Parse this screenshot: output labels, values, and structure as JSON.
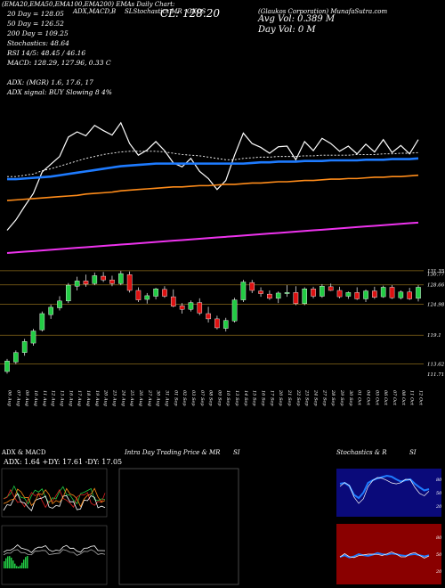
{
  "header": {
    "top_line": {
      "left": "(EMA20,EMA50,EMA100,EMA200) EMAs Daily Chart:",
      "mid": "SLStochastics MR",
      "indicators": "ADX,MACD,B",
      "symbol_label": "Daily Charts",
      "ticker": "GKOS",
      "company": "(Glaukos Corporation) MunafaSutra.com"
    },
    "lines": [
      "20  Day = 128.05",
      "50  Day = 126.52",
      "200  Day = 109.25",
      "Stochastics: 48.64",
      "RSI 14/5: 48.45 / 46.16",
      "MACD: 128.29,  127.96,  0.33 C",
      "",
      "ADX:                     (MGR) 1.6,  17.6,  17",
      "ADX  signal:                     BUY Slowing 8 4%"
    ],
    "cl_label": "CL: 128.20",
    "avg_vol": "Avg Vol: 0.389 M",
    "day_vol": "Day Vol: 0   M"
  },
  "price_axis": [
    "131.35",
    "130.77",
    "128.66",
    "124.98",
    "119.1",
    "113.62",
    "111.71"
  ],
  "date_labels": [
    "06 Aug",
    "07 Aug",
    "09 Aug",
    "10 Aug",
    "11 Aug",
    "12 Aug",
    "13 Aug",
    "16 Aug",
    "17 Aug",
    "18 Aug",
    "19 Aug",
    "20 Aug",
    "23 Aug",
    "24 Aug",
    "25 Aug",
    "26 Aug",
    "27 Aug",
    "30 Aug",
    "31 Aug",
    "01 Sep",
    "02 Sep",
    "03 Sep",
    "07 Sep",
    "08 Sep",
    "09 Sep",
    "10 Sep",
    "13 Sep",
    "14 Sep",
    "15 Sep",
    "16 Sep",
    "17 Sep",
    "20 Sep",
    "21 Sep",
    "22 Sep",
    "23 Sep",
    "24 Sep",
    "27 Sep",
    "28 Sep",
    "29 Sep",
    "30 Sep",
    "01 Oct",
    "04 Oct",
    "05 Oct",
    "06 Oct",
    "07 Oct",
    "08 Oct",
    "11 Oct",
    "12 Oct"
  ],
  "panels": {
    "adx_title": "ADX  & MACD",
    "adx_values": "ADX: 1.64  +DY: 17.61  -DY: 17.05",
    "intra_title": "Intra  Day Trading Price  & MR",
    "si_label": "SI",
    "stoch_title": "Stochastics  & R",
    "stoch_si": "SI",
    "stoch_ticks": [
      "80",
      "50",
      "20"
    ],
    "rsi_ticks": [
      "80",
      "50",
      "20"
    ]
  },
  "colors": {
    "bull": "#22cc44",
    "bear": "#dd1111",
    "ema20": "#ffffff",
    "ema50": "#1e7bff",
    "ema100": "#ff8c1a",
    "ema200": "#ee33ee",
    "stoch_bg": "#0a0a7a",
    "rsi_bg": "#8a0000"
  },
  "chart_data": {
    "type": "candlestick",
    "ylim": [
      110,
      132
    ],
    "candles": [
      [
        112.2,
        114.6,
        111.8,
        114.2
      ],
      [
        114.0,
        116.2,
        113.6,
        115.8
      ],
      [
        115.8,
        118.4,
        115.2,
        117.9
      ],
      [
        117.6,
        120.3,
        117.1,
        119.9
      ],
      [
        120.1,
        123.6,
        119.8,
        123.2
      ],
      [
        123.0,
        124.9,
        122.2,
        124.4
      ],
      [
        124.3,
        126.5,
        123.8,
        125.6
      ],
      [
        125.6,
        129.0,
        125.2,
        128.6
      ],
      [
        128.4,
        130.2,
        127.6,
        129.4
      ],
      [
        129.4,
        130.6,
        128.3,
        128.8
      ],
      [
        128.9,
        131.0,
        128.6,
        130.4
      ],
      [
        130.3,
        131.1,
        129.2,
        129.6
      ],
      [
        129.6,
        130.4,
        128.4,
        128.9
      ],
      [
        128.9,
        131.3,
        128.6,
        130.8
      ],
      [
        130.6,
        131.2,
        127.2,
        127.6
      ],
      [
        127.6,
        128.2,
        125.4,
        125.8
      ],
      [
        125.9,
        127.1,
        125.1,
        126.6
      ],
      [
        126.5,
        128.1,
        125.9,
        127.9
      ],
      [
        127.8,
        128.4,
        126.2,
        126.5
      ],
      [
        126.4,
        127.8,
        124.4,
        124.6
      ],
      [
        124.7,
        125.2,
        123.2,
        124.0
      ],
      [
        124.0,
        125.7,
        123.6,
        125.3
      ],
      [
        125.3,
        126.1,
        122.9,
        123.3
      ],
      [
        123.2,
        124.5,
        121.5,
        122.2
      ],
      [
        122.2,
        122.8,
        120.2,
        120.5
      ],
      [
        120.4,
        122.4,
        119.8,
        121.9
      ],
      [
        121.8,
        126.2,
        121.5,
        125.8
      ],
      [
        125.8,
        129.6,
        125.4,
        129.2
      ],
      [
        129.1,
        129.6,
        127.1,
        127.6
      ],
      [
        127.5,
        128.2,
        126.4,
        127.0
      ],
      [
        126.9,
        127.6,
        125.8,
        126.1
      ],
      [
        126.1,
        127.4,
        125.2,
        127.1
      ],
      [
        127.0,
        128.6,
        126.4,
        127.2
      ],
      [
        127.2,
        128.4,
        124.8,
        125.1
      ],
      [
        125.1,
        128.2,
        124.8,
        127.9
      ],
      [
        127.9,
        128.3,
        126.1,
        126.5
      ],
      [
        126.5,
        128.8,
        126.2,
        128.4
      ],
      [
        128.3,
        128.9,
        127.5,
        127.6
      ],
      [
        127.6,
        128.3,
        126.1,
        126.4
      ],
      [
        126.5,
        127.4,
        126.0,
        127.2
      ],
      [
        127.2,
        128.2,
        125.8,
        126.0
      ],
      [
        126.0,
        127.8,
        125.4,
        127.5
      ],
      [
        127.5,
        128.3,
        126.0,
        126.3
      ],
      [
        126.4,
        128.5,
        126.2,
        128.2
      ],
      [
        128.2,
        128.6,
        126.0,
        126.2
      ],
      [
        126.2,
        127.6,
        125.9,
        127.3
      ],
      [
        127.3,
        128.1,
        125.8,
        126.0
      ],
      [
        126.1,
        128.6,
        125.5,
        128.2
      ]
    ],
    "ema20": [
      124.0,
      124.0,
      124.2,
      124.4,
      124.9,
      125.2,
      125.6,
      126.0,
      126.4,
      126.8,
      127.1,
      127.4,
      127.6,
      127.8,
      127.9,
      127.9,
      127.9,
      127.9,
      127.8,
      127.6,
      127.4,
      127.3,
      127.2,
      127.0,
      126.8,
      126.6,
      126.6,
      126.8,
      126.9,
      127.0,
      127.0,
      127.1,
      127.1,
      127.1,
      127.2,
      127.2,
      127.3,
      127.3,
      127.3,
      127.3,
      127.4,
      127.4,
      127.4,
      127.5,
      127.5,
      127.6,
      127.6,
      127.7
    ],
    "ema50": [
      123.6,
      123.6,
      123.7,
      123.8,
      123.9,
      124.0,
      124.2,
      124.4,
      124.6,
      124.8,
      125.0,
      125.2,
      125.4,
      125.6,
      125.7,
      125.8,
      125.9,
      126.0,
      126.0,
      126.0,
      126.0,
      126.0,
      126.0,
      126.0,
      126.0,
      126.0,
      126.0,
      126.0,
      126.1,
      126.2,
      126.2,
      126.3,
      126.3,
      126.3,
      126.4,
      126.4,
      126.4,
      126.5,
      126.5,
      126.5,
      126.5,
      126.6,
      126.6,
      126.6,
      126.7,
      126.7,
      126.7,
      126.8
    ],
    "ema100": [
      120.3,
      120.4,
      120.5,
      120.6,
      120.7,
      120.8,
      120.9,
      121.0,
      121.1,
      121.3,
      121.4,
      121.5,
      121.6,
      121.8,
      121.9,
      122.0,
      122.1,
      122.2,
      122.3,
      122.4,
      122.4,
      122.5,
      122.6,
      122.6,
      122.7,
      122.8,
      122.8,
      122.9,
      123.0,
      123.0,
      123.1,
      123.2,
      123.2,
      123.3,
      123.4,
      123.4,
      123.5,
      123.6,
      123.6,
      123.7,
      123.7,
      123.8,
      123.9,
      123.9,
      124.0,
      124.0,
      124.1,
      124.2
    ],
    "ema200": [
      112.2,
      112.3,
      112.4,
      112.5,
      112.6,
      112.7,
      112.8,
      112.9,
      113.0,
      113.1,
      113.2,
      113.3,
      113.4,
      113.5,
      113.6,
      113.7,
      113.8,
      113.9,
      114.0,
      114.1,
      114.2,
      114.3,
      114.4,
      114.5,
      114.6,
      114.7,
      114.8,
      114.9,
      115.0,
      115.1,
      115.2,
      115.3,
      115.4,
      115.5,
      115.6,
      115.7,
      115.8,
      115.9,
      116.0,
      116.1,
      116.2,
      116.3,
      116.4,
      116.5,
      116.6,
      116.7,
      116.8,
      116.9
    ],
    "stochastics": [
      70,
      72,
      65,
      45,
      38,
      50,
      72,
      78,
      82,
      85,
      88,
      86,
      80,
      75,
      78,
      80,
      70,
      62,
      55,
      58
    ],
    "rsi": [
      45,
      48,
      44,
      46,
      50,
      48,
      47,
      49,
      52,
      50,
      49,
      51,
      50,
      48,
      47,
      49,
      50,
      48,
      46,
      48
    ]
  }
}
